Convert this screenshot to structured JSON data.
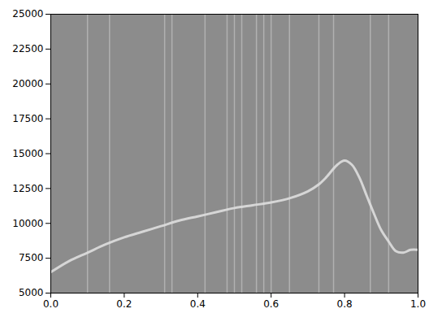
{
  "chart_data": {
    "type": "line",
    "x": [
      0,
      0.05,
      0.1,
      0.15,
      0.2,
      0.25,
      0.3,
      0.35,
      0.4,
      0.45,
      0.5,
      0.55,
      0.6,
      0.65,
      0.7,
      0.73,
      0.75,
      0.78,
      0.8,
      0.82,
      0.84,
      0.86,
      0.88,
      0.9,
      0.92,
      0.94,
      0.96,
      0.98,
      1.0
    ],
    "values": [
      6500,
      7300,
      7900,
      8500,
      9000,
      9400,
      9800,
      10200,
      10500,
      10800,
      11100,
      11300,
      11500,
      11800,
      12300,
      12800,
      13300,
      14200,
      14500,
      14200,
      13300,
      12000,
      10700,
      9500,
      8700,
      8000,
      7900,
      8100,
      8100
    ],
    "color": "#dedede",
    "vlines": [
      0.1,
      0.16,
      0.31,
      0.33,
      0.42,
      0.48,
      0.5,
      0.52,
      0.56,
      0.58,
      0.6,
      0.65,
      0.73,
      0.77,
      0.87,
      0.92
    ],
    "xlim": [
      0,
      1.0
    ],
    "ylim": [
      5000,
      25000
    ],
    "xticks": [
      {
        "value": 0,
        "label": "0.0"
      },
      0.2,
      0.4,
      0.6,
      0.8,
      {
        "value": 1.0,
        "label": "1.0"
      }
    ],
    "yticks": [
      5000,
      7500,
      10000,
      12500,
      15000,
      17500,
      20000,
      22500,
      25000
    ],
    "grid": false
  }
}
